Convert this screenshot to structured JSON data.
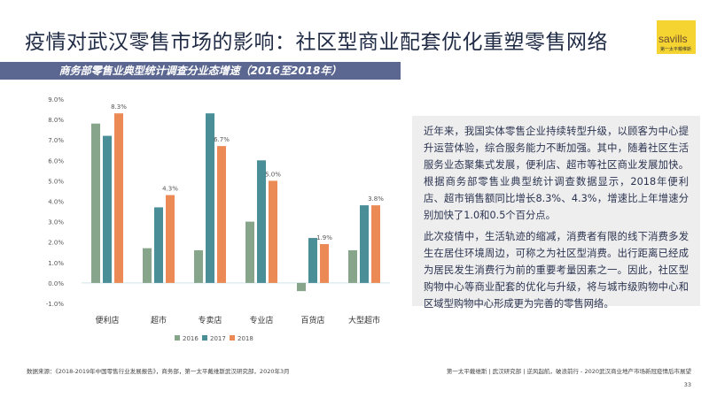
{
  "title": "疫情对武汉零售市场的影响：社区型商业配套优化重塑零售网络",
  "logo": {
    "wordmark": "savills",
    "subtitle": "第一太平戴维斯"
  },
  "colors": {
    "s2016": "#86a58a",
    "s2017": "#4a8e97",
    "s2018": "#eb8a55",
    "banner": "#5b6791"
  },
  "chart_data": {
    "type": "bar",
    "title": "商务部零售业典型统计调查分业态增速（2016至2018年）",
    "categories": [
      "便利店",
      "超市",
      "专卖店",
      "专业店",
      "百货店",
      "大型超市"
    ],
    "series": [
      {
        "name": "2016",
        "values": [
          7.8,
          1.7,
          1.6,
          3.0,
          -0.4,
          1.6
        ]
      },
      {
        "name": "2017",
        "values": [
          7.2,
          3.7,
          8.3,
          6.0,
          2.2,
          3.8
        ]
      },
      {
        "name": "2018",
        "values": [
          8.3,
          4.3,
          6.7,
          5.0,
          1.9,
          3.8
        ]
      }
    ],
    "data_labels": {
      "series": "2018",
      "labels": [
        "8.3%",
        "4.3%",
        "6.7%",
        "5.0%",
        "1.9%",
        "3.8%"
      ]
    },
    "yticks": [
      "-1.0%",
      "0.0%",
      "1.0%",
      "2.0%",
      "3.0%",
      "4.0%",
      "5.0%",
      "6.0%",
      "7.0%",
      "8.0%",
      "9.0%"
    ],
    "ylim": [
      -1,
      9
    ],
    "legend": "bottom",
    "grid": false
  },
  "panel": {
    "p1": "近年来，我国实体零售企业持续转型升级，以顾客为中心提升运营体验，综合服务能力不断加强。其中，随着社区生活服务业态聚集式发展，便利店、超市等社区商业发展加快。根据商务部零售业典型统计调查数据显示，2018年便利店、超市销售额同比增长8.3%、4.3%，增速比上年增速分别加快了1.0和0.5个百分点。",
    "p2": "此次疫情中，生活轨迹的缩减，消费者有限的线下消费多发生在居住环境周边，可称之为社区型消费。出行距离已经成为居民发生消费行为前的重要考量因素之一。因此，社区型购物中心等商业配套的优化与升级，将与城市级购物中心和区域型购物中心形成更为完善的零售网络。"
  },
  "footer": {
    "source": "数据来源：《2018-2019年中国零售行业发展报告》，商务部，第一太平戴维斯武汉研究部，2020年3月",
    "right": "第一太平戴维斯 | 武汉研究部 | 逆风起航，破浪前行 - 2020武汉商业地产市场新冠疫情后市展望",
    "page": "33"
  }
}
